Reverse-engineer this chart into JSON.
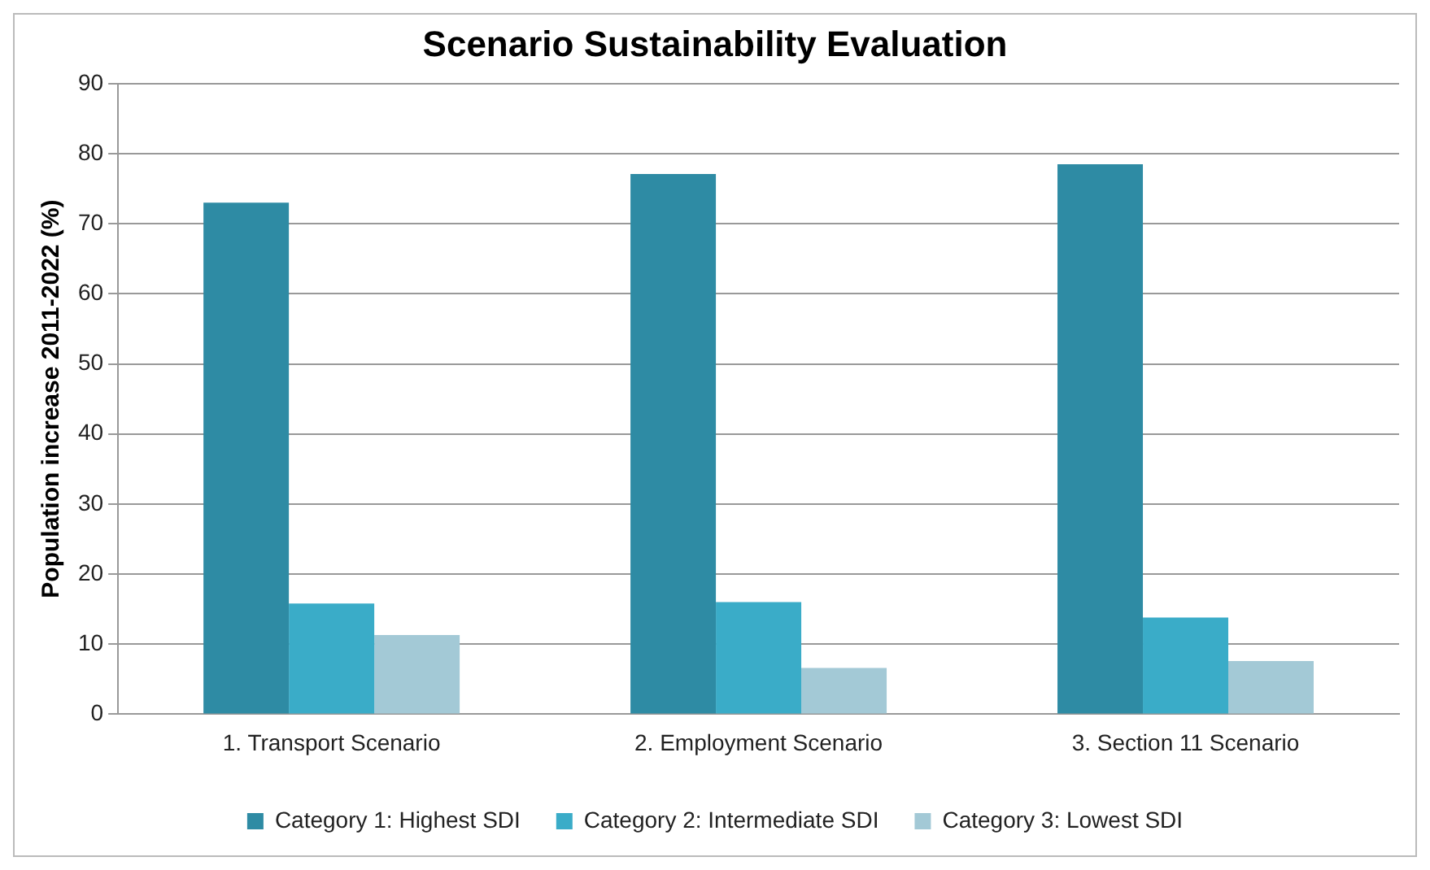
{
  "chart_data": {
    "type": "bar",
    "title": "Scenario Sustainability Evaluation",
    "ylabel": "Population increase 2011-2022 (%)",
    "categories": [
      "1. Transport Scenario",
      "2. Employment Scenario",
      "3. Section 11 Scenario"
    ],
    "series": [
      {
        "name": "Category 1: Highest SDI",
        "color": "#2e8ba4",
        "values": [
          73,
          77.1,
          78.5
        ]
      },
      {
        "name": "Category 2: Intermediate SDI",
        "color": "#3aacc8",
        "values": [
          15.8,
          16,
          13.8
        ]
      },
      {
        "name": "Category 3: Lowest SDI",
        "color": "#a3c9d6",
        "values": [
          11.3,
          6.6,
          7.6
        ]
      }
    ],
    "ylim": [
      0,
      90
    ],
    "yticks": [
      0,
      10,
      20,
      30,
      40,
      50,
      60,
      70,
      80,
      90
    ],
    "grid": "y",
    "legend": "bottom"
  }
}
